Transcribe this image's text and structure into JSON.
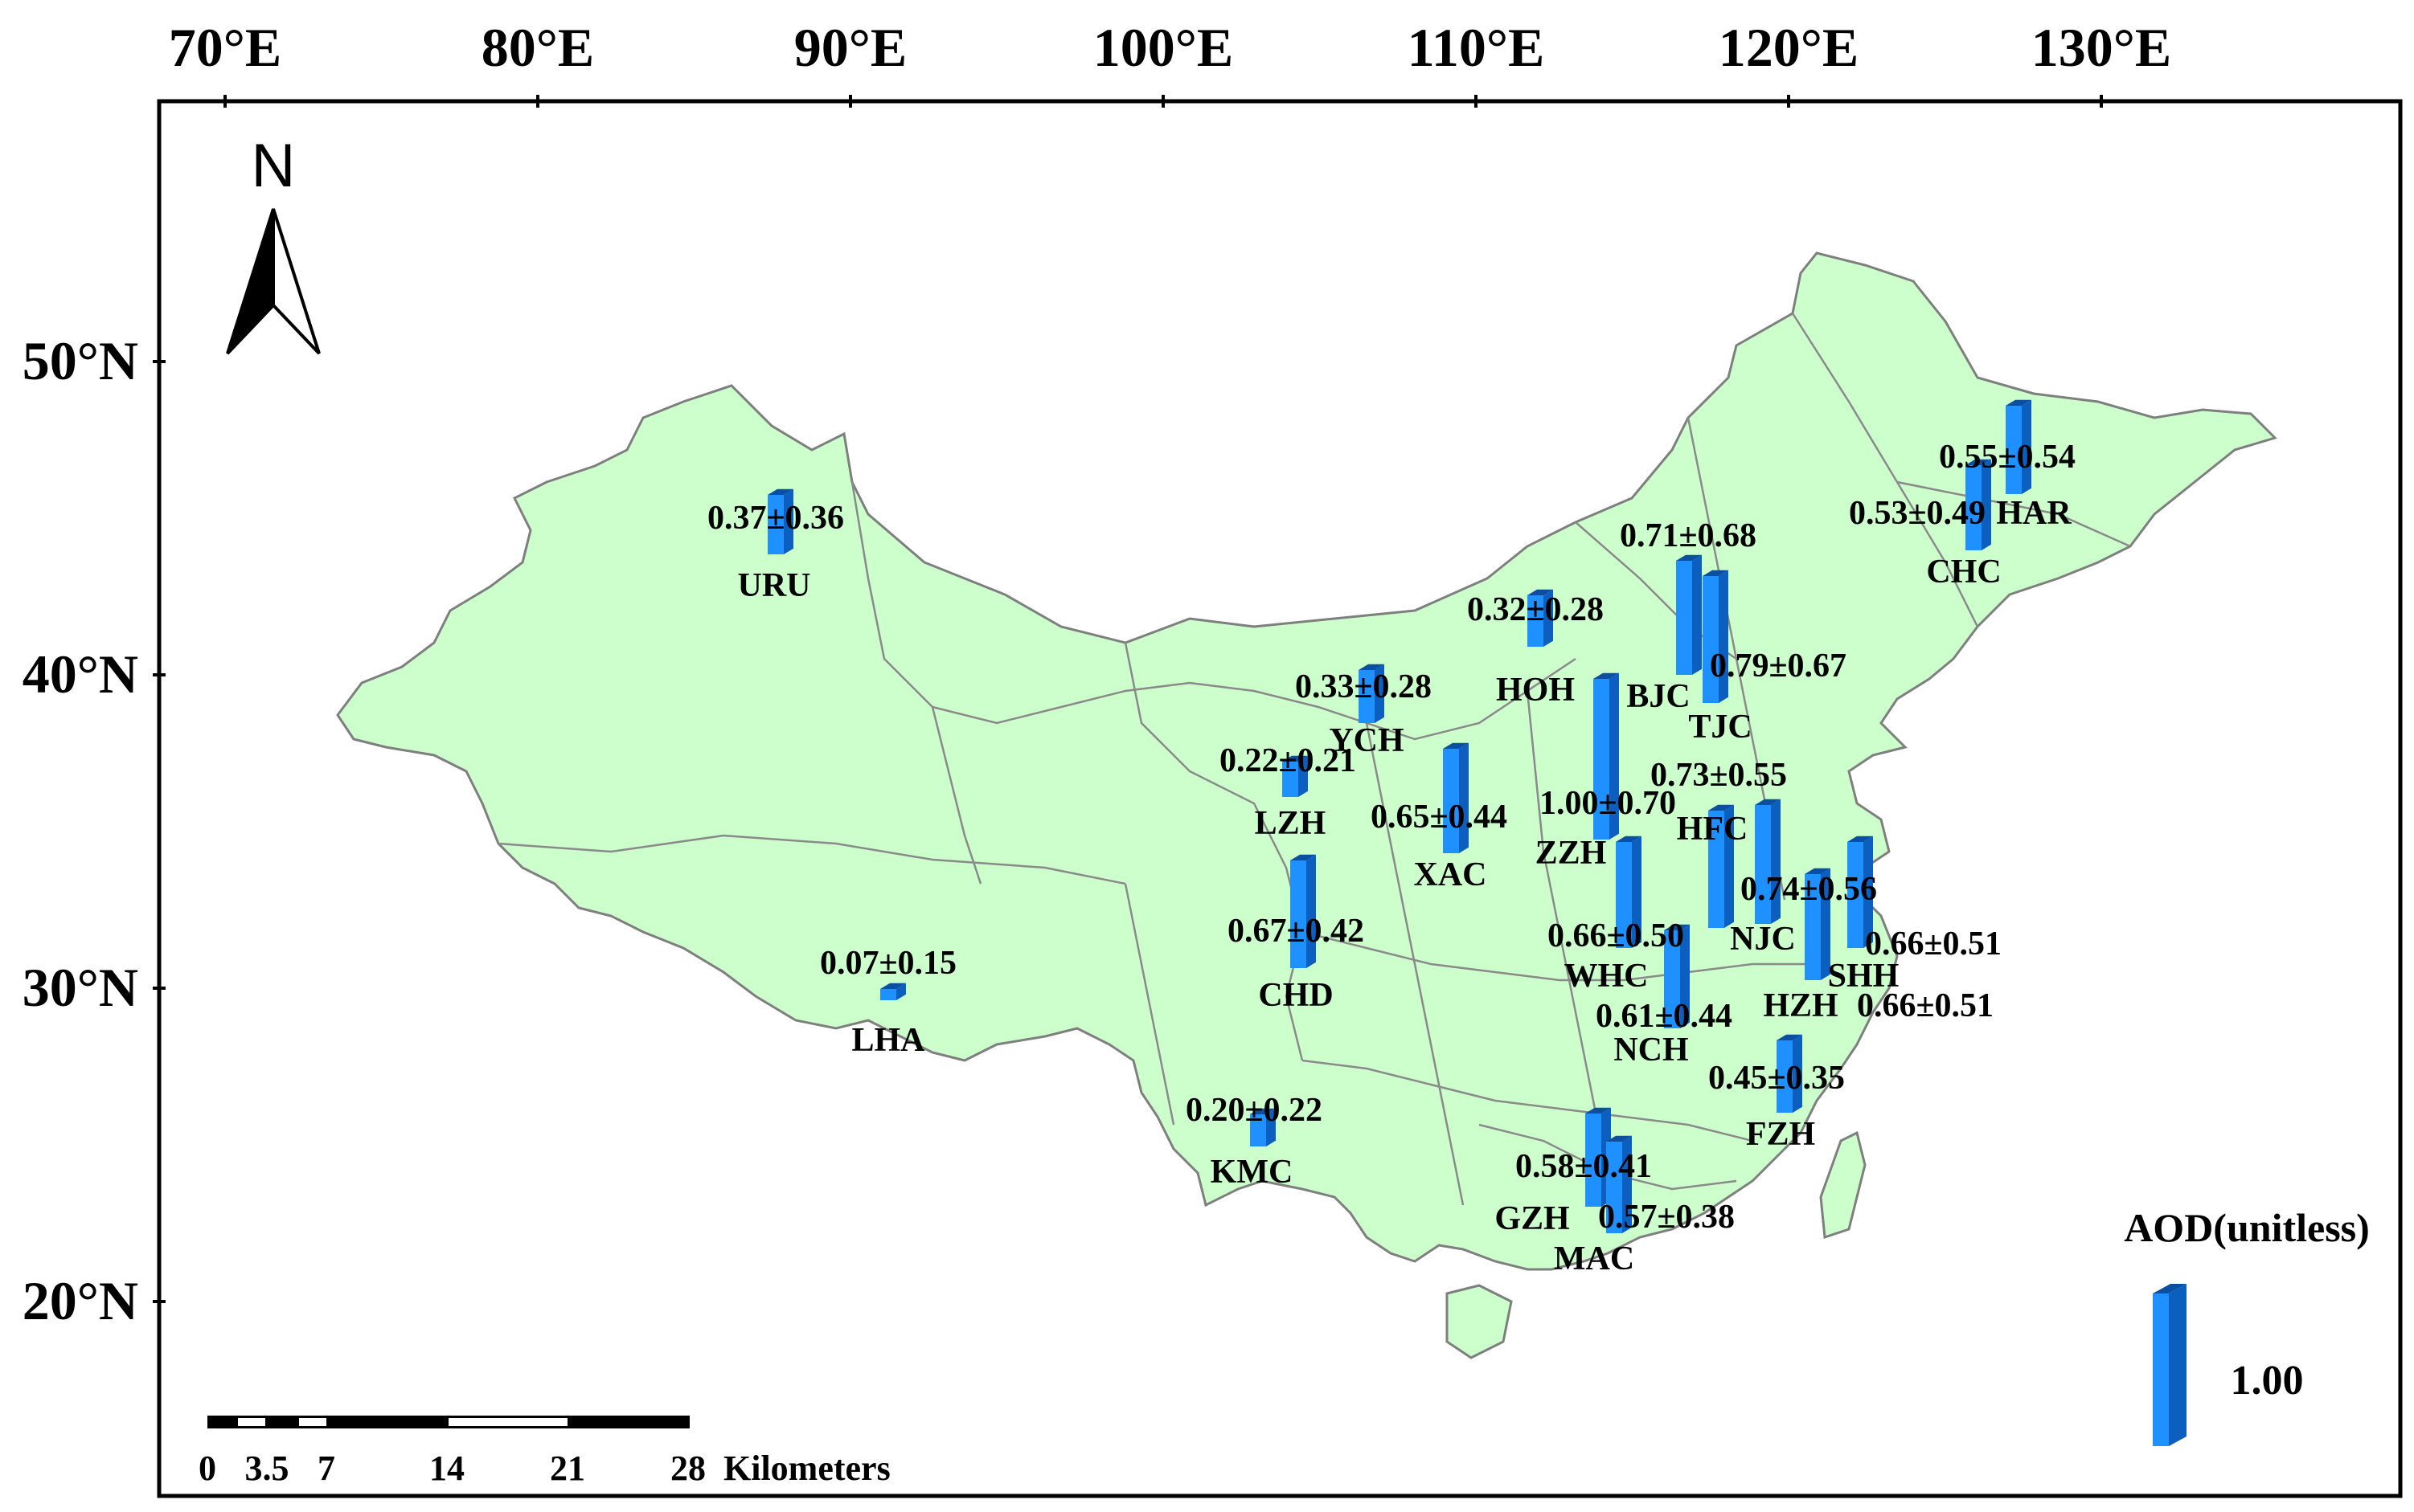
{
  "axes": {
    "lon_labels": [
      "70°E",
      "80°E",
      "90°E",
      "100°E",
      "110°E",
      "120°E",
      "130°E"
    ],
    "lat_labels": [
      "50°N",
      "40°N",
      "30°N",
      "20°N"
    ]
  },
  "north_arrow": {
    "label": "N",
    "icon": "north-arrow-icon"
  },
  "legend": {
    "title": "AOD(unitless)",
    "value": "1.00",
    "bar_color": "#1e90ff"
  },
  "scale_bar": {
    "ticks": [
      "0",
      "3.5",
      "7",
      "14",
      "21",
      "28"
    ],
    "unit": "Kilometers"
  },
  "colors": {
    "land": "#ccffcc",
    "border": "#808080",
    "bar": "#1e90ff",
    "bar_dark": "#0b4fa3"
  },
  "stations": [
    {
      "code": "URU",
      "value": "0.37±0.36",
      "aod": 0.37
    },
    {
      "code": "LHA",
      "value": "0.07±0.15",
      "aod": 0.07
    },
    {
      "code": "LZH",
      "value": "0.22±0.21",
      "aod": 0.22
    },
    {
      "code": "YCH",
      "value": "0.33±0.28",
      "aod": 0.33
    },
    {
      "code": "CHD",
      "value": "0.67±0.42",
      "aod": 0.67
    },
    {
      "code": "KMC",
      "value": "0.20±0.22",
      "aod": 0.2
    },
    {
      "code": "XAC",
      "value": "0.65±0.44",
      "aod": 0.65
    },
    {
      "code": "HOH",
      "value": "0.32±0.28",
      "aod": 0.32
    },
    {
      "code": "ZZH",
      "value": "1.00±0.70",
      "aod": 1.0
    },
    {
      "code": "BJC",
      "value": "0.71±0.68",
      "aod": 0.71
    },
    {
      "code": "TJC",
      "value": "0.79±0.67",
      "aod": 0.79
    },
    {
      "code": "WHC",
      "value": "0.66±0.50",
      "aod": 0.66
    },
    {
      "code": "NCH",
      "value": "0.61±0.44",
      "aod": 0.61
    },
    {
      "code": "HFC",
      "value": "0.73±0.55",
      "aod": 0.73
    },
    {
      "code": "NJC",
      "value": "0.74±0.56",
      "aod": 0.74
    },
    {
      "code": "SHH",
      "value": "0.66±0.51",
      "aod": 0.66
    },
    {
      "code": "HZH",
      "value": "0.66±0.51",
      "aod": 0.66
    },
    {
      "code": "FZH",
      "value": "0.45±0.35",
      "aod": 0.45
    },
    {
      "code": "GZH",
      "value": "0.58±0.41",
      "aod": 0.58
    },
    {
      "code": "MAC",
      "value": "0.57±0.38",
      "aod": 0.57
    },
    {
      "code": "HAR",
      "value": "0.55±0.54",
      "aod": 0.55
    },
    {
      "code": "CHC",
      "value": "0.53±0.49",
      "aod": 0.53
    }
  ]
}
